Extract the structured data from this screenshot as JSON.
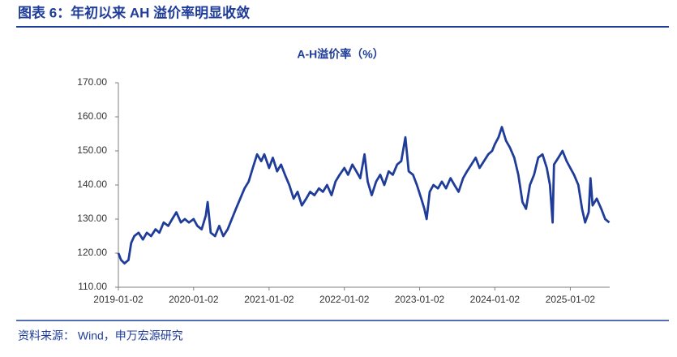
{
  "figure_title": "图表 6：年初以来 AH 溢价率明显收敛",
  "source": "资料来源：  Wind，申万宏源研究",
  "chart_data": {
    "type": "line",
    "title": "A-H溢价率（%）",
    "x": [
      "2019-01-02",
      "2019-01-15",
      "2019-02-01",
      "2019-02-20",
      "2019-03-05",
      "2019-03-20",
      "2019-04-10",
      "2019-05-01",
      "2019-05-20",
      "2019-06-10",
      "2019-07-01",
      "2019-07-20",
      "2019-08-10",
      "2019-09-01",
      "2019-09-20",
      "2019-10-10",
      "2019-11-01",
      "2019-11-20",
      "2019-12-10",
      "2020-01-02",
      "2020-01-20",
      "2020-02-10",
      "2020-03-01",
      "2020-03-10",
      "2020-03-25",
      "2020-04-15",
      "2020-05-05",
      "2020-05-25",
      "2020-06-15",
      "2020-07-05",
      "2020-07-25",
      "2020-08-15",
      "2020-09-05",
      "2020-09-25",
      "2020-10-15",
      "2020-11-05",
      "2020-11-25",
      "2020-12-10",
      "2021-01-02",
      "2021-01-20",
      "2021-02-10",
      "2021-03-01",
      "2021-03-20",
      "2021-04-10",
      "2021-05-01",
      "2021-05-20",
      "2021-06-10",
      "2021-07-01",
      "2021-07-20",
      "2021-08-10",
      "2021-09-01",
      "2021-09-20",
      "2021-10-10",
      "2021-11-01",
      "2021-11-20",
      "2021-12-10",
      "2022-01-02",
      "2022-01-20",
      "2022-02-10",
      "2022-03-01",
      "2022-03-20",
      "2022-04-10",
      "2022-04-25",
      "2022-05-15",
      "2022-06-05",
      "2022-06-25",
      "2022-07-15",
      "2022-08-05",
      "2022-08-25",
      "2022-09-15",
      "2022-10-05",
      "2022-10-25",
      "2022-11-10",
      "2022-12-01",
      "2022-12-20",
      "2023-01-10",
      "2023-01-25",
      "2023-02-05",
      "2023-02-20",
      "2023-03-10",
      "2023-04-01",
      "2023-04-20",
      "2023-05-10",
      "2023-06-01",
      "2023-06-20",
      "2023-07-10",
      "2023-08-01",
      "2023-08-20",
      "2023-09-10",
      "2023-10-01",
      "2023-10-20",
      "2023-11-10",
      "2023-12-01",
      "2023-12-20",
      "2024-01-02",
      "2024-01-20",
      "2024-02-05",
      "2024-02-25",
      "2024-03-15",
      "2024-04-05",
      "2024-04-25",
      "2024-05-15",
      "2024-06-01",
      "2024-06-20",
      "2024-07-10",
      "2024-07-30",
      "2024-08-20",
      "2024-09-10",
      "2024-09-25",
      "2024-10-08",
      "2024-10-15",
      "2024-11-05",
      "2024-11-25",
      "2024-12-15",
      "2025-01-02",
      "2025-01-20",
      "2025-02-10",
      "2025-02-28",
      "2025-03-15",
      "2025-04-01",
      "2025-04-10",
      "2025-04-20",
      "2025-05-10",
      "2025-06-01",
      "2025-06-20",
      "2025-07-10"
    ],
    "series": [
      {
        "color": "#1f3c99",
        "values": [
          120,
          118,
          117,
          118,
          123,
          125,
          126,
          124,
          126,
          125,
          127,
          126,
          129,
          128,
          130,
          132,
          129,
          130,
          129,
          130,
          128,
          127,
          131,
          135,
          126,
          125,
          128,
          125,
          127,
          130,
          133,
          136,
          139,
          141,
          145,
          149,
          147,
          149,
          145,
          148,
          144,
          146,
          143,
          140,
          136,
          138,
          134,
          136,
          138,
          137,
          139,
          138,
          140,
          137,
          141,
          143,
          145,
          143,
          146,
          144,
          142,
          149,
          141,
          137,
          141,
          143,
          140,
          144,
          143,
          146,
          147,
          154,
          144,
          143,
          140,
          136,
          133,
          130,
          138,
          140,
          139,
          141,
          139,
          142,
          140,
          138,
          142,
          144,
          146,
          148,
          145,
          147,
          149,
          150,
          152,
          154,
          157,
          153,
          151,
          148,
          143,
          135,
          133,
          140,
          143,
          148,
          149,
          145,
          140,
          129,
          146,
          148,
          150,
          147,
          145,
          143,
          140,
          133,
          129,
          132,
          142,
          134,
          136,
          133,
          130,
          129
        ]
      }
    ],
    "xlim": [
      "2019-01-02",
      "2025-07-12"
    ],
    "xticks": [
      "2019-01-02",
      "2020-01-02",
      "2021-01-02",
      "2022-01-02",
      "2023-01-02",
      "2024-01-02",
      "2025-01-02"
    ],
    "ylim": [
      110,
      170
    ],
    "yticks": [
      {
        "value": 110,
        "label": "110.00"
      },
      {
        "value": 120,
        "label": "120.00"
      },
      {
        "value": 130,
        "label": "130.00"
      },
      {
        "value": 140,
        "label": "140.00"
      },
      {
        "value": 150,
        "label": "150.00"
      },
      {
        "value": 160,
        "label": "160.00"
      },
      {
        "value": 170,
        "label": "170.00"
      }
    ],
    "grid": false
  }
}
